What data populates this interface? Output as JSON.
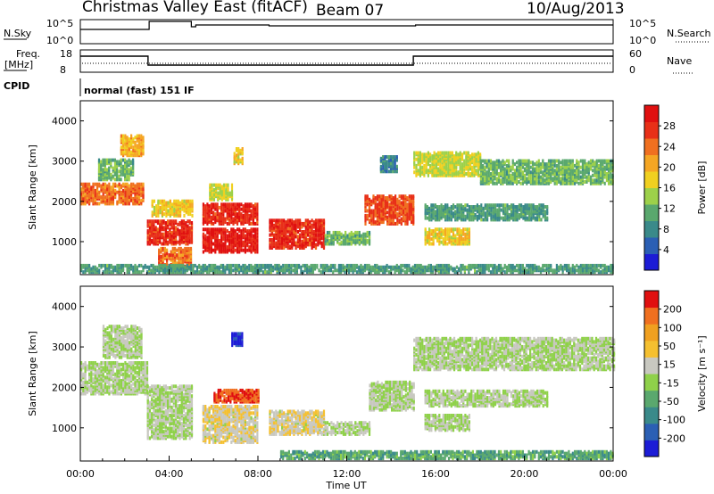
{
  "header": {
    "station": "Christmas Valley East (fitACF)",
    "beam": "Beam 07",
    "date": "10/Aug/2013"
  },
  "top_panels": {
    "nsky_label": "N.Sky",
    "nsky_ticks": [
      "10^5",
      "10^0"
    ],
    "nsearch_label": "N.Search",
    "nsearch_ticks": [
      "10^5",
      "10^0"
    ],
    "freq_label_1": "Freq.",
    "freq_label_2": "[MHz]",
    "freq_ticks": [
      "18",
      "8"
    ],
    "nave_label": "Nave",
    "nave_ticks": [
      "60",
      "0"
    ],
    "cpid_label": "CPID",
    "cpid_value": "normal (fast) 151 IF"
  },
  "chart_data": [
    {
      "type": "heatmap",
      "name": "power-panel",
      "xlabel": "Time UT",
      "ylabel": "Slant Range [km]",
      "x_range_hours": [
        0,
        24
      ],
      "ylim": [
        180,
        4500
      ],
      "y_ticks": [
        1000,
        2000,
        3000,
        4000
      ],
      "colorbar": {
        "label": "Power [dB]",
        "ticks": [
          "4",
          "8",
          "12",
          "16",
          "20",
          "24",
          "28"
        ],
        "colors": [
          "#1c1cd6",
          "#2b5fb4",
          "#3a8a8a",
          "#5aa86e",
          "#9dd14a",
          "#f0d020",
          "#f5a623",
          "#f07020",
          "#e83018",
          "#e01010"
        ],
        "vmin": 0,
        "vmax": 32
      },
      "bands": [
        {
          "t0": 0.0,
          "t1": 2.8,
          "r0": 1900,
          "r1": 2400,
          "v": 24
        },
        {
          "t0": 0.8,
          "t1": 2.4,
          "r0": 2500,
          "r1": 3000,
          "v": 12
        },
        {
          "t0": 1.8,
          "t1": 2.8,
          "r0": 3100,
          "r1": 3600,
          "v": 20
        },
        {
          "t0": 3.0,
          "t1": 5.0,
          "r0": 900,
          "r1": 1500,
          "v": 28
        },
        {
          "t0": 3.2,
          "t1": 5.0,
          "r0": 1600,
          "r1": 2000,
          "v": 18
        },
        {
          "t0": 3.5,
          "t1": 5.0,
          "r0": 300,
          "r1": 800,
          "v": 24
        },
        {
          "t0": 5.5,
          "t1": 8.0,
          "r0": 700,
          "r1": 1300,
          "v": 30
        },
        {
          "t0": 5.5,
          "t1": 8.0,
          "r0": 1400,
          "r1": 1900,
          "v": 28
        },
        {
          "t0": 5.8,
          "t1": 6.8,
          "r0": 2000,
          "r1": 2400,
          "v": 16
        },
        {
          "t0": 6.9,
          "t1": 7.3,
          "r0": 2900,
          "r1": 3300,
          "v": 18
        },
        {
          "t0": 8.5,
          "t1": 11.0,
          "r0": 800,
          "r1": 1500,
          "v": 28
        },
        {
          "t0": 11.0,
          "t1": 13.0,
          "r0": 900,
          "r1": 1200,
          "v": 12
        },
        {
          "t0": 12.8,
          "t1": 15.0,
          "r0": 1400,
          "r1": 2100,
          "v": 26
        },
        {
          "t0": 13.5,
          "t1": 14.3,
          "r0": 2700,
          "r1": 3100,
          "v": 8
        },
        {
          "t0": 15.0,
          "t1": 18.0,
          "r0": 2600,
          "r1": 3200,
          "v": 16
        },
        {
          "t0": 18.0,
          "t1": 24.0,
          "r0": 2400,
          "r1": 3000,
          "v": 12
        },
        {
          "t0": 15.5,
          "t1": 21.0,
          "r0": 1500,
          "r1": 1900,
          "v": 10
        },
        {
          "t0": 15.5,
          "t1": 17.5,
          "r0": 900,
          "r1": 1300,
          "v": 18
        },
        {
          "t0": 0.0,
          "t1": 24.0,
          "r0": 200,
          "r1": 400,
          "v": 10
        }
      ]
    },
    {
      "type": "heatmap",
      "name": "velocity-panel",
      "xlabel": "Time UT",
      "ylabel": "Slant Range [km]",
      "x_range_hours": [
        0,
        24
      ],
      "ylim": [
        180,
        4500
      ],
      "y_ticks": [
        1000,
        2000,
        3000,
        4000
      ],
      "x_ticks": [
        "00:00",
        "04:00",
        "08:00",
        "12:00",
        "16:00",
        "20:00",
        "00:00"
      ],
      "colorbar": {
        "label": "Velocity [m s⁻¹]",
        "ticks": [
          "200",
          "100",
          "50",
          "15",
          "-15",
          "-50",
          "-100",
          "-200"
        ],
        "colors": [
          "#1c1cd6",
          "#2b5fb4",
          "#3a8a8a",
          "#5aa86e",
          "#8fd14a",
          "#c8c8c0",
          "#f5c030",
          "#f0a020",
          "#f07020",
          "#e01010"
        ],
        "vmin": -250,
        "vmax": 250
      },
      "bands": [
        {
          "t0": 0.0,
          "t1": 3.0,
          "r0": 1800,
          "r1": 2600,
          "v": 0
        },
        {
          "t0": 1.0,
          "t1": 2.8,
          "r0": 2700,
          "r1": 3500,
          "v": 0
        },
        {
          "t0": 3.0,
          "t1": 5.0,
          "r0": 700,
          "r1": 2000,
          "v": 0
        },
        {
          "t0": 5.5,
          "t1": 8.0,
          "r0": 600,
          "r1": 1500,
          "v": 40
        },
        {
          "t0": 6.0,
          "t1": 8.0,
          "r0": 1600,
          "r1": 1900,
          "v": 200
        },
        {
          "t0": 6.8,
          "t1": 7.3,
          "r0": 3000,
          "r1": 3300,
          "v": -220
        },
        {
          "t0": 8.5,
          "t1": 11.0,
          "r0": 800,
          "r1": 1400,
          "v": 40
        },
        {
          "t0": 11.0,
          "t1": 13.0,
          "r0": 800,
          "r1": 1100,
          "v": 0
        },
        {
          "t0": 13.0,
          "t1": 15.0,
          "r0": 1400,
          "r1": 2100,
          "v": 0
        },
        {
          "t0": 15.0,
          "t1": 24.0,
          "r0": 2400,
          "r1": 3200,
          "v": 0
        },
        {
          "t0": 15.5,
          "t1": 21.0,
          "r0": 1500,
          "r1": 1900,
          "v": 0
        },
        {
          "t0": 15.5,
          "t1": 17.5,
          "r0": 900,
          "r1": 1300,
          "v": 0
        },
        {
          "t0": 9.0,
          "t1": 24.0,
          "r0": 200,
          "r1": 400,
          "v": -80
        }
      ]
    }
  ]
}
